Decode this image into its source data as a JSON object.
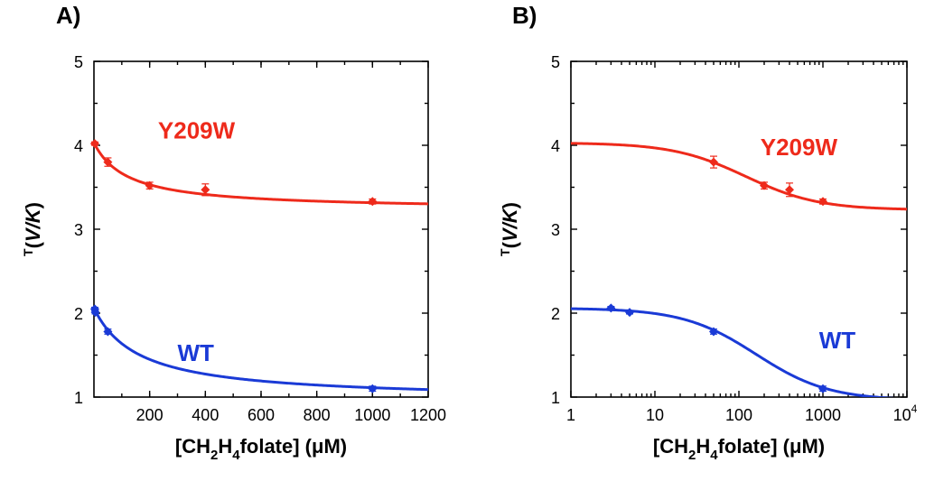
{
  "chart_data": [
    {
      "panel_label": "A)",
      "type": "line",
      "xscale": "linear",
      "xlabel": {
        "pre": "[CH",
        "sub1": "2",
        "mid": "H",
        "sub2": "4",
        "post": "folate] (μM)"
      },
      "ylabel": {
        "sup": "T",
        "pre": "(",
        "italic": "V/K",
        "post": ")"
      },
      "xlim": [
        0,
        1200
      ],
      "ylim": [
        1,
        5
      ],
      "xticks": [
        {
          "v": 200,
          "t": "200"
        },
        {
          "v": 400,
          "t": "400"
        },
        {
          "v": 600,
          "t": "600"
        },
        {
          "v": 800,
          "t": "800"
        },
        {
          "v": 1000,
          "t": "1000"
        },
        {
          "v": 1200,
          "t": "1200"
        }
      ],
      "yticks": [
        {
          "v": 1,
          "t": "1"
        },
        {
          "v": 2,
          "t": "2"
        },
        {
          "v": 3,
          "t": "3"
        },
        {
          "v": 4,
          "t": "4"
        },
        {
          "v": 5,
          "t": "5"
        }
      ],
      "series": [
        {
          "name": "Y209W",
          "color": "#ee2a1b",
          "label_at": [
            230,
            4.08
          ],
          "points": [
            {
              "x": 3,
              "y": 4.02,
              "err": 0.02
            },
            {
              "x": 50,
              "y": 3.8,
              "err": 0.05
            },
            {
              "x": 200,
              "y": 3.52,
              "err": 0.04
            },
            {
              "x": 400,
              "y": 3.47,
              "err": 0.07
            },
            {
              "x": 1000,
              "y": 3.33,
              "err": 0.03
            }
          ],
          "fit": {
            "floor": 3.23,
            "amp": 0.8,
            "k": 120
          }
        },
        {
          "name": "WT",
          "color": "#1a3ad6",
          "label_at": [
            300,
            1.43
          ],
          "points": [
            {
              "x": 3,
              "y": 2.05,
              "err": 0.02
            },
            {
              "x": 5,
              "y": 2.01,
              "err": 0.02
            },
            {
              "x": 50,
              "y": 1.78,
              "err": 0.03
            },
            {
              "x": 1000,
              "y": 1.1,
              "err": 0.03
            }
          ],
          "fit": {
            "floor": 0.96,
            "amp": 1.1,
            "k": 160
          }
        }
      ]
    },
    {
      "panel_label": "B)",
      "type": "line",
      "xscale": "log",
      "xlabel": {
        "pre": "[CH",
        "sub1": "2",
        "mid": "H",
        "sub2": "4",
        "post": "folate] (μM)"
      },
      "ylabel": {
        "sup": "T",
        "pre": "(",
        "italic": "V/K",
        "post": ")"
      },
      "xlim": [
        1,
        10000
      ],
      "ylim": [
        1,
        5
      ],
      "xticks": [
        {
          "v": 1,
          "t": "1"
        },
        {
          "v": 10,
          "t": "10"
        },
        {
          "v": 100,
          "t": "100"
        },
        {
          "v": 1000,
          "t": "1000"
        },
        {
          "v": 10000,
          "t": "10",
          "sup": "4"
        }
      ],
      "yticks": [
        {
          "v": 1,
          "t": "1"
        },
        {
          "v": 2,
          "t": "2"
        },
        {
          "v": 3,
          "t": "3"
        },
        {
          "v": 4,
          "t": "4"
        },
        {
          "v": 5,
          "t": "5"
        }
      ],
      "series": [
        {
          "name": "Y209W",
          "color": "#ee2a1b",
          "label_at": [
            180,
            3.88
          ],
          "points": [
            {
              "x": 50,
              "y": 3.8,
              "err": 0.07
            },
            {
              "x": 200,
              "y": 3.52,
              "err": 0.04
            },
            {
              "x": 400,
              "y": 3.47,
              "err": 0.08
            },
            {
              "x": 1000,
              "y": 3.33,
              "err": 0.03
            }
          ],
          "fit": {
            "floor": 3.23,
            "amp": 0.8,
            "k": 120
          }
        },
        {
          "name": "WT",
          "color": "#1a3ad6",
          "label_at": [
            900,
            1.58
          ],
          "points": [
            {
              "x": 3,
              "y": 2.06,
              "err": 0.02
            },
            {
              "x": 5,
              "y": 2.01,
              "err": 0.02
            },
            {
              "x": 50,
              "y": 1.78,
              "err": 0.03
            },
            {
              "x": 1000,
              "y": 1.1,
              "err": 0.03
            }
          ],
          "fit": {
            "floor": 0.96,
            "amp": 1.1,
            "k": 160
          }
        }
      ]
    }
  ]
}
